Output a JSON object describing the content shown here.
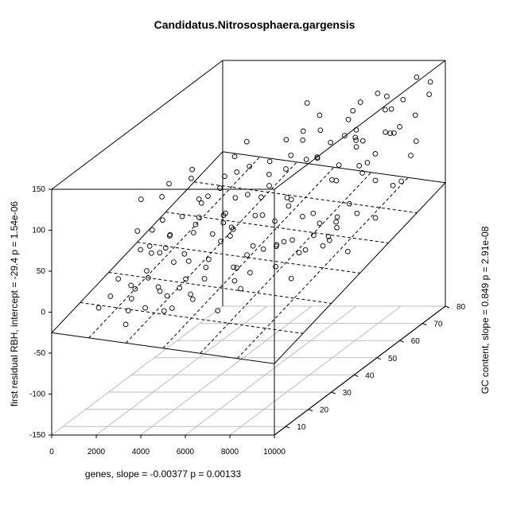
{
  "chart_data": {
    "type": "scatter",
    "title": "Candidatus.Nitrososphaera.gargensis",
    "xlabel": "genes, slope =  -0.00377 p =  0.00133",
    "ylabel": "GC content, slope =  0.849 p =  2.91e-08",
    "zlabel": "first residual RBH, intercept =  -29.4 p =  1.54e-06",
    "x_ticks": [
      "0",
      "2000",
      "4000",
      "6000",
      "8000",
      "10000"
    ],
    "y_ticks": [
      "10",
      "20",
      "30",
      "40",
      "50",
      "60",
      "70",
      "80"
    ],
    "z_ticks": [
      "-150",
      "-100",
      "-50",
      "0",
      "50",
      "100",
      "150"
    ],
    "xlim": [
      0,
      10000
    ],
    "ylim": [
      5,
      80
    ],
    "zlim": [
      -150,
      150
    ],
    "grid": true,
    "box": true,
    "regression_plane": {
      "intercept": -29.4,
      "slope_x": -0.00377,
      "slope_y": 0.849
    },
    "points": [
      [
        780,
        18,
        -22
      ],
      [
        1040,
        34,
        77
      ],
      [
        1820,
        22,
        -3
      ],
      [
        2050,
        20,
        -15
      ],
      [
        2200,
        16,
        -38
      ],
      [
        2390,
        24,
        2
      ],
      [
        2560,
        30,
        26
      ],
      [
        2730,
        20,
        19
      ],
      [
        2940,
        28,
        45
      ],
      [
        3120,
        22,
        -10
      ],
      [
        3290,
        36,
        42
      ],
      [
        3460,
        24,
        -35
      ],
      [
        3650,
        34,
        55
      ],
      [
        3810,
        26,
        27
      ],
      [
        3970,
        40,
        78
      ],
      [
        4160,
        32,
        -2
      ],
      [
        4330,
        38,
        40
      ],
      [
        4490,
        30,
        12
      ],
      [
        4680,
        46,
        92
      ],
      [
        4840,
        36,
        28
      ],
      [
        5010,
        42,
        66
      ],
      [
        5200,
        34,
        -6
      ],
      [
        5360,
        48,
        78
      ],
      [
        5530,
        38,
        -21
      ],
      [
        5720,
        52,
        112
      ],
      [
        5880,
        40,
        45
      ],
      [
        6050,
        56,
        103
      ],
      [
        6230,
        46,
        0
      ],
      [
        6400,
        60,
        125
      ],
      [
        6580,
        44,
        58
      ],
      [
        6750,
        62,
        42
      ],
      [
        6930,
        52,
        22
      ],
      [
        7100,
        58,
        96
      ],
      [
        7280,
        66,
        118
      ],
      [
        7460,
        54,
        -15
      ],
      [
        7640,
        64,
        78
      ],
      [
        7820,
        50,
        -2
      ],
      [
        8000,
        60,
        98
      ],
      [
        8190,
        68,
        135
      ],
      [
        8370,
        48,
        20
      ],
      [
        8550,
        70,
        82
      ],
      [
        8730,
        56,
        63
      ],
      [
        8920,
        72,
        119
      ],
      [
        9110,
        58,
        4
      ],
      [
        9300,
        74,
        64
      ],
      [
        9490,
        62,
        35
      ],
      [
        9680,
        76,
        117
      ],
      [
        7320,
        42,
        -5
      ],
      [
        5860,
        28,
        -10
      ],
      [
        1880,
        35,
        78
      ],
      [
        2420,
        30,
        60
      ],
      [
        2930,
        38,
        105
      ],
      [
        3510,
        20,
        -30
      ],
      [
        3770,
        44,
        84
      ],
      [
        4290,
        24,
        -18
      ],
      [
        4800,
        50,
        46
      ],
      [
        5310,
        32,
        47
      ],
      [
        5840,
        60,
        140
      ],
      [
        6330,
        36,
        12
      ],
      [
        6870,
        68,
        103
      ],
      [
        7380,
        38,
        -28
      ],
      [
        7920,
        74,
        75
      ],
      [
        8450,
        40,
        35
      ],
      [
        9010,
        66,
        120
      ],
      [
        9530,
        78,
        128
      ],
      [
        1630,
        28,
        28
      ],
      [
        2210,
        20,
        -3
      ],
      [
        2760,
        30,
        42
      ],
      [
        3330,
        26,
        17
      ],
      [
        3890,
        34,
        -20
      ],
      [
        4460,
        42,
        62
      ],
      [
        5030,
        30,
        34
      ],
      [
        5590,
        46,
        98
      ],
      [
        6150,
        50,
        43
      ],
      [
        6710,
        56,
        81
      ],
      [
        7270,
        44,
        35
      ],
      [
        7840,
        62,
        103
      ],
      [
        8400,
        48,
        13
      ],
      [
        8970,
        70,
        90
      ],
      [
        9520,
        54,
        58
      ],
      [
        1490,
        24,
        -38
      ],
      [
        2090,
        32,
        16
      ],
      [
        2660,
        22,
        45
      ],
      [
        3230,
        42,
        64
      ],
      [
        3800,
        28,
        14
      ],
      [
        4360,
        48,
        118
      ],
      [
        4930,
        38,
        -15
      ],
      [
        5500,
        54,
        72
      ],
      [
        6070,
        34,
        20
      ],
      [
        6640,
        58,
        111
      ],
      [
        7200,
        46,
        -10
      ],
      [
        7770,
        64,
        55
      ],
      [
        8340,
        52,
        117
      ],
      [
        8900,
        60,
        78
      ],
      [
        9470,
        70,
        55
      ],
      [
        1250,
        22,
        5
      ],
      [
        1950,
        30,
        48
      ],
      [
        3050,
        22,
        -5
      ],
      [
        3640,
        40,
        22
      ],
      [
        4220,
        26,
        53
      ],
      [
        4780,
        44,
        -12
      ],
      [
        5360,
        28,
        70
      ],
      [
        5930,
        52,
        93
      ],
      [
        6500,
        40,
        7
      ],
      [
        7060,
        62,
        60
      ],
      [
        7630,
        36,
        23
      ],
      [
        8190,
        72,
        123
      ],
      [
        8760,
        50,
        38
      ],
      [
        9330,
        64,
        95
      ],
      [
        2330,
        26,
        28
      ],
      [
        2890,
        34,
        56
      ],
      [
        3460,
        30,
        -12
      ],
      [
        4020,
        46,
        104
      ],
      [
        4590,
        22,
        -20
      ],
      [
        5160,
        50,
        60
      ],
      [
        5720,
        32,
        -28
      ],
      [
        6290,
        60,
        74
      ],
      [
        6850,
        42,
        52
      ],
      [
        7420,
        66,
        82
      ],
      [
        7980,
        46,
        -5
      ],
      [
        8550,
        58,
        98
      ],
      [
        9120,
        76,
        138
      ],
      [
        2680,
        40,
        90
      ],
      [
        3240,
        24,
        -20
      ],
      [
        3810,
        44,
        39
      ],
      [
        4370,
        28,
        85
      ],
      [
        4940,
        46,
        32
      ],
      [
        5510,
        24,
        -38
      ],
      [
        6070,
        56,
        114
      ],
      [
        6640,
        38,
        42
      ],
      [
        7210,
        70,
        120
      ],
      [
        7770,
        44,
        12
      ],
      [
        8340,
        62,
        63
      ],
      [
        8900,
        52,
        22
      ],
      [
        9470,
        72,
        100
      ],
      [
        1100,
        20,
        -12
      ],
      [
        1700,
        26,
        55
      ],
      [
        2300,
        34,
        96
      ],
      [
        2870,
        18,
        -22
      ],
      [
        3440,
        36,
        73
      ],
      [
        4000,
        22,
        -6
      ],
      [
        4570,
        40,
        28
      ],
      [
        5140,
        36,
        106
      ],
      [
        5700,
        48,
        -8
      ],
      [
        6270,
        42,
        -22
      ],
      [
        6830,
        50,
        92
      ],
      [
        7400,
        58,
        5
      ],
      [
        7970,
        52,
        62
      ],
      [
        8530,
        68,
        115
      ],
      [
        9100,
        46,
        -12
      ],
      [
        9660,
        64,
        36
      ]
    ]
  }
}
